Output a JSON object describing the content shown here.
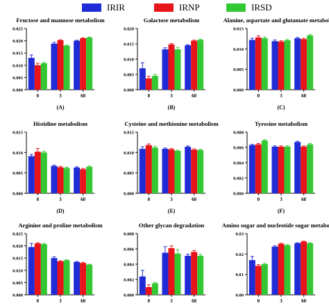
{
  "legend": {
    "series": [
      {
        "name": "IRIR",
        "color": "#1f2bd6"
      },
      {
        "name": "IRNP",
        "color": "#e8141b"
      },
      {
        "name": "IRSD",
        "color": "#33c833"
      }
    ]
  },
  "chart_data": [
    {
      "type": "bar",
      "title": "Fructose and mannose metabolism",
      "panel_label": "(A)",
      "categories": [
        "0",
        "3",
        "60"
      ],
      "ylim": [
        0,
        0.025
      ],
      "yticks": [
        "0.000",
        "0.005",
        "0.010",
        "0.015",
        "0.020",
        "0.025"
      ],
      "series": [
        {
          "name": "IRIR",
          "values": [
            0.013,
            0.0188,
            0.02
          ],
          "errors": [
            0.0012,
            0.0005,
            0.0002
          ]
        },
        {
          "name": "IRNP",
          "values": [
            0.01,
            0.0202,
            0.021
          ],
          "errors": [
            0.0008,
            0.0002,
            0.0002
          ]
        },
        {
          "name": "IRSD",
          "values": [
            0.0108,
            0.018,
            0.0213
          ],
          "errors": [
            0.0004,
            0.0002,
            0.0002
          ]
        }
      ]
    },
    {
      "type": "bar",
      "title": "Galactose metabolism",
      "panel_label": "(B)",
      "categories": [
        "0",
        "3",
        "60"
      ],
      "ylim": [
        0,
        0.02
      ],
      "yticks": [
        "0.000",
        "0.005",
        "0.010",
        "0.015",
        "0.020"
      ],
      "series": [
        {
          "name": "IRIR",
          "values": [
            0.007,
            0.0132,
            0.0145
          ],
          "errors": [
            0.0018,
            0.0005,
            0.0002
          ]
        },
        {
          "name": "IRNP",
          "values": [
            0.0037,
            0.0148,
            0.016
          ],
          "errors": [
            0.0007,
            0.0003,
            0.0002
          ]
        },
        {
          "name": "IRSD",
          "values": [
            0.0045,
            0.0132,
            0.0163
          ],
          "errors": [
            0.0005,
            0.0006,
            0.0002
          ]
        }
      ]
    },
    {
      "type": "bar",
      "title": "Alanine, aspartate and glutamate metabolism",
      "panel_label": "(C)",
      "categories": [
        "0",
        "3",
        "60"
      ],
      "ylim": [
        0,
        0.015
      ],
      "yticks": [
        "0.000",
        "0.005",
        "0.010",
        "0.015"
      ],
      "series": [
        {
          "name": "IRIR",
          "values": [
            0.0122,
            0.0119,
            0.0126
          ],
          "errors": [
            0.0004,
            0.0003,
            0.0002
          ]
        },
        {
          "name": "IRNP",
          "values": [
            0.0128,
            0.0118,
            0.0124
          ],
          "errors": [
            0.0004,
            0.0002,
            0.0002
          ]
        },
        {
          "name": "IRSD",
          "values": [
            0.0126,
            0.0121,
            0.0133
          ],
          "errors": [
            0.0003,
            0.0002,
            0.0002
          ]
        }
      ]
    },
    {
      "type": "bar",
      "title": "Histidine metabolism",
      "panel_label": "(D)",
      "categories": [
        "0",
        "3",
        "60"
      ],
      "ylim": [
        0,
        0.015
      ],
      "yticks": [
        "0.000",
        "0.005",
        "0.010",
        "0.015"
      ],
      "series": [
        {
          "name": "IRIR",
          "values": [
            0.0091,
            0.0067,
            0.0063
          ],
          "errors": [
            0.0004,
            0.0002,
            0.0002
          ]
        },
        {
          "name": "IRNP",
          "values": [
            0.0102,
            0.0064,
            0.0059
          ],
          "errors": [
            0.0008,
            0.0002,
            0.0002
          ]
        },
        {
          "name": "IRSD",
          "values": [
            0.01,
            0.0062,
            0.0065
          ],
          "errors": [
            0.0003,
            0.0002,
            0.0002
          ]
        }
      ]
    },
    {
      "type": "bar",
      "title": "Cysteine and methionine metabolism",
      "panel_label": "(E)",
      "categories": [
        "0",
        "3",
        "60"
      ],
      "ylim": [
        0,
        0.015
      ],
      "yticks": [
        "0.000",
        "0.005",
        "0.010",
        "0.015"
      ],
      "series": [
        {
          "name": "IRIR",
          "values": [
            0.0109,
            0.0109,
            0.0114
          ],
          "errors": [
            0.0005,
            0.0002,
            0.0002
          ]
        },
        {
          "name": "IRNP",
          "values": [
            0.0118,
            0.0108,
            0.0107
          ],
          "errors": [
            0.0003,
            0.0002,
            0.0002
          ]
        },
        {
          "name": "IRSD",
          "values": [
            0.0112,
            0.0104,
            0.0106
          ],
          "errors": [
            0.0003,
            0.0002,
            0.0002
          ]
        }
      ]
    },
    {
      "type": "bar",
      "title": "Tyrosine metabolism",
      "panel_label": "(F)",
      "categories": [
        "0",
        "3",
        "60"
      ],
      "ylim": [
        0,
        0.008
      ],
      "yticks": [
        "0.000",
        "0.002",
        "0.004",
        "0.006",
        "0.008"
      ],
      "series": [
        {
          "name": "IRIR",
          "values": [
            0.0063,
            0.0061,
            0.0067
          ],
          "errors": [
            0.0001,
            0.0001,
            0.0001
          ]
        },
        {
          "name": "IRNP",
          "values": [
            0.0064,
            0.0061,
            0.0061
          ],
          "errors": [
            0.0001,
            0.0001,
            0.0001
          ]
        },
        {
          "name": "IRSD",
          "values": [
            0.0069,
            0.0061,
            0.0064
          ],
          "errors": [
            0.0001,
            0.0001,
            0.0001
          ]
        }
      ]
    },
    {
      "type": "bar",
      "title": "Arginine and proline metabolism",
      "panel_label": "(G)",
      "categories": [
        "0",
        "3",
        "60"
      ],
      "ylim": [
        0,
        0.025
      ],
      "yticks": [
        "0.000",
        "0.005",
        "0.010",
        "0.015",
        "0.020",
        "0.025"
      ],
      "series": [
        {
          "name": "IRIR",
          "values": [
            0.0195,
            0.015,
            0.0134
          ],
          "errors": [
            0.0015,
            0.0005,
            0.0002
          ]
        },
        {
          "name": "IRNP",
          "values": [
            0.021,
            0.0137,
            0.013
          ],
          "errors": [
            0.0003,
            0.0002,
            0.0002
          ]
        },
        {
          "name": "IRSD",
          "values": [
            0.0207,
            0.0141,
            0.0123
          ],
          "errors": [
            0.0003,
            0.0002,
            0.0002
          ]
        }
      ]
    },
    {
      "type": "bar",
      "title": "Other glycan degradation",
      "panel_label": "(H)",
      "categories": [
        "0",
        "3",
        "60"
      ],
      "ylim": [
        0,
        0.008
      ],
      "yticks": [
        "0.000",
        "0.002",
        "0.004",
        "0.006",
        "0.008"
      ],
      "series": [
        {
          "name": "IRIR",
          "values": [
            0.0024,
            0.0055,
            0.0051
          ],
          "errors": [
            0.0008,
            0.0008,
            0.0002
          ]
        },
        {
          "name": "IRNP",
          "values": [
            0.001,
            0.0061,
            0.0056
          ],
          "errors": [
            0.0003,
            0.0003,
            0.0002
          ]
        },
        {
          "name": "IRSD",
          "values": [
            0.0015,
            0.0054,
            0.0051
          ],
          "errors": [
            0.0001,
            0.0005,
            0.0002
          ]
        }
      ]
    },
    {
      "type": "bar",
      "title": "Amino sugar and nucleotide sugar metabolism",
      "panel_label": "(I)",
      "categories": [
        "0",
        "3",
        "60"
      ],
      "ylim": [
        0,
        0.03
      ],
      "yticks": [
        "0.00",
        "0.01",
        "0.02",
        "0.03"
      ],
      "series": [
        {
          "name": "IRIR",
          "values": [
            0.017,
            0.0236,
            0.0253
          ],
          "errors": [
            0.0018,
            0.0004,
            0.0002
          ]
        },
        {
          "name": "IRNP",
          "values": [
            0.0142,
            0.025,
            0.0261
          ],
          "errors": [
            0.0006,
            0.0003,
            0.0002
          ]
        },
        {
          "name": "IRSD",
          "values": [
            0.015,
            0.0243,
            0.0253
          ],
          "errors": [
            0.0004,
            0.0003,
            0.0002
          ]
        }
      ]
    }
  ]
}
